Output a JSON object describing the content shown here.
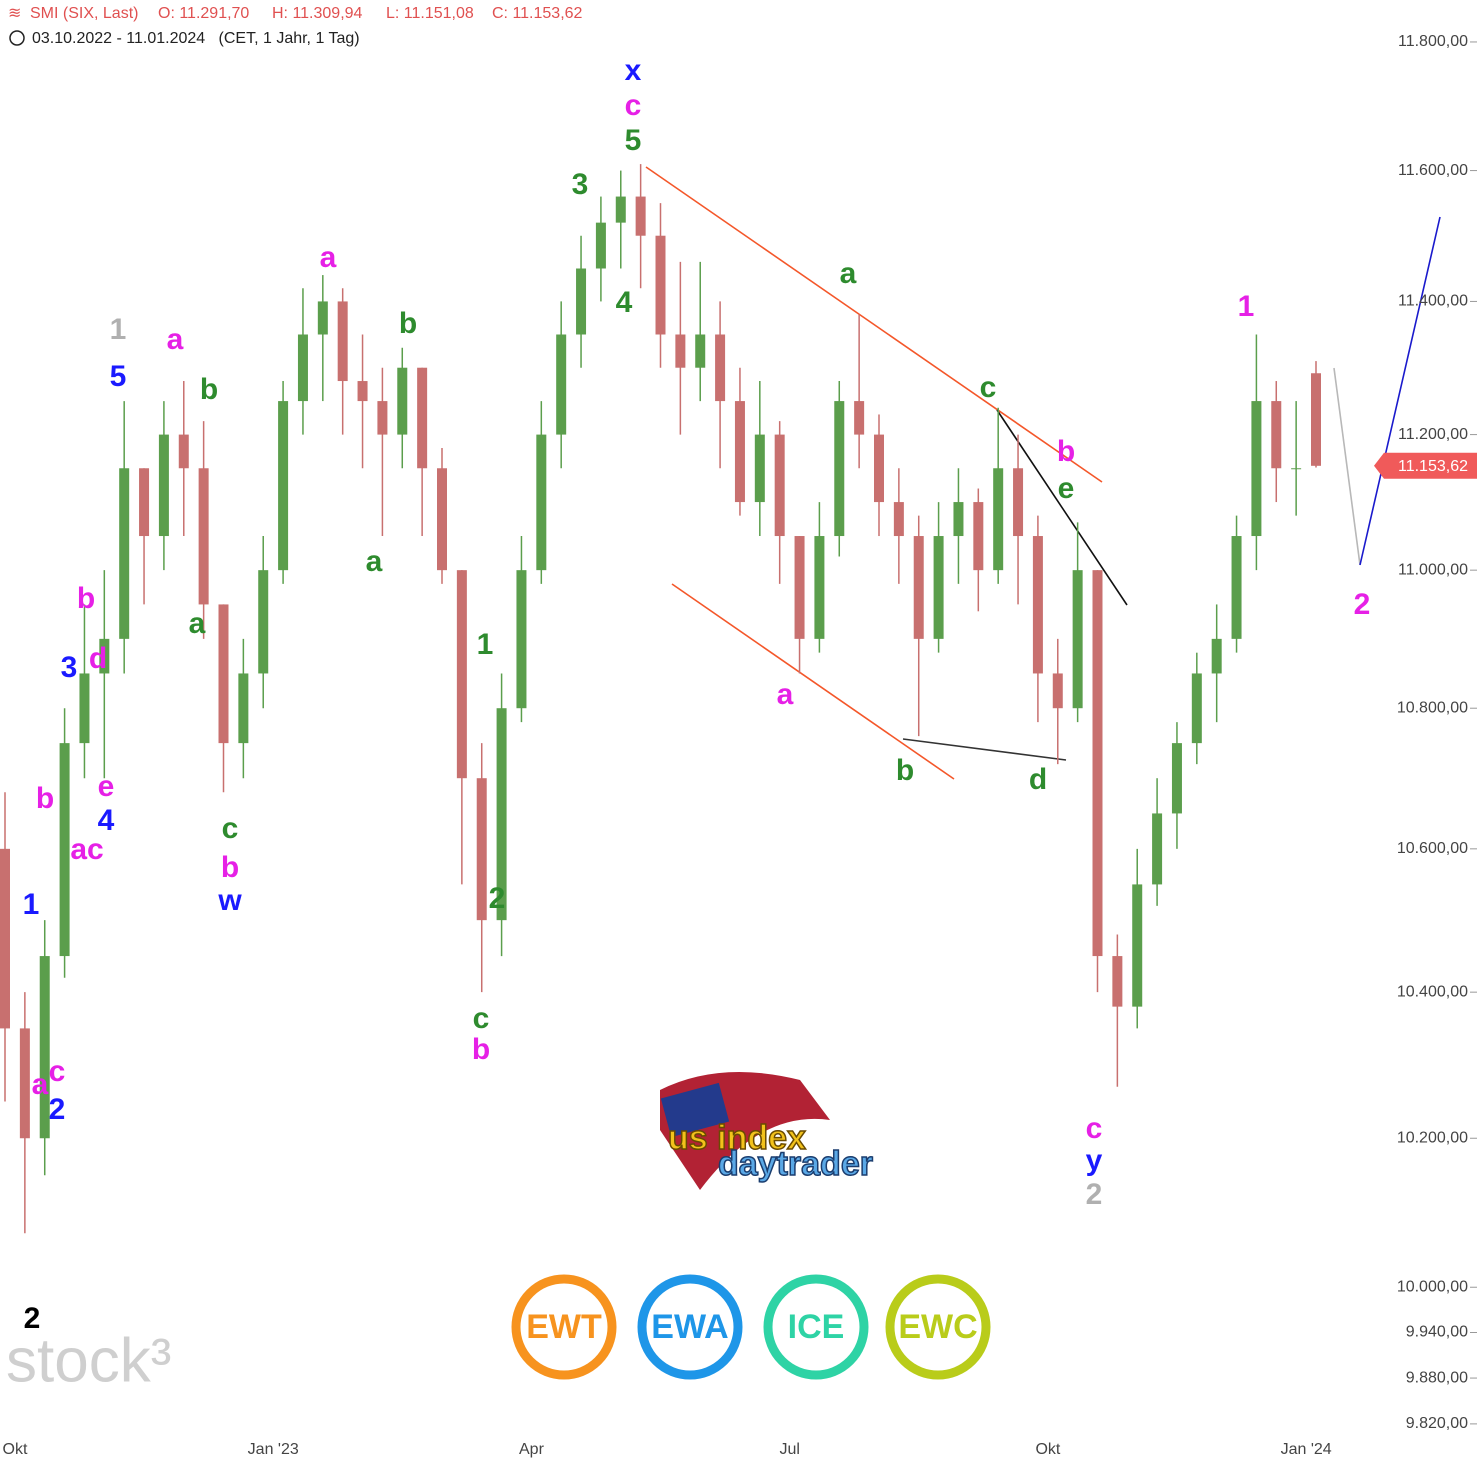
{
  "chart_data": {
    "type": "candlestick",
    "header": [
      "SMI (SIX, Last)",
      "O: 11.291,70",
      "H: 11.309,94",
      "L: 11.151,08",
      "C: 11.153,62"
    ],
    "subtitle": "03.10.2022 - 11.01.2024   (CET, 1 Jahr, 1 Tag)",
    "categories": [
      "Okt",
      null,
      null,
      null,
      null,
      null,
      null,
      null,
      null,
      null,
      null,
      null,
      null,
      "Jan '23",
      null,
      null,
      null,
      null,
      null,
      null,
      null,
      null,
      null,
      null,
      null,
      null,
      "Apr",
      null,
      null,
      null,
      null,
      null,
      null,
      null,
      null,
      null,
      null,
      null,
      null,
      "Jul",
      null,
      null,
      null,
      null,
      null,
      null,
      null,
      null,
      null,
      null,
      null,
      null,
      "Okt",
      null,
      null,
      null,
      null,
      null,
      null,
      null,
      null,
      null,
      null,
      null,
      null,
      "Jan '24",
      null
    ],
    "open": [
      10600,
      10350,
      10200,
      10450,
      10750,
      10850,
      10900,
      11150,
      11050,
      11200,
      11150,
      10950,
      10750,
      10850,
      11000,
      11250,
      11350,
      11400,
      11280,
      11250,
      11200,
      11300,
      11150,
      11000,
      10700,
      10500,
      10800,
      11000,
      11200,
      11350,
      11450,
      11520,
      11560,
      11500,
      11350,
      11300,
      11350,
      11250,
      11100,
      11200,
      11050,
      10900,
      11050,
      11250,
      11200,
      11100,
      11050,
      10900,
      11050,
      11100,
      11000,
      11150,
      11050,
      10850,
      10800,
      11000,
      10450,
      10380,
      10550,
      10650,
      10750,
      10850,
      10900,
      11050,
      11250,
      11150,
      11291.7
    ],
    "high": [
      10680,
      10400,
      10500,
      10800,
      10950,
      11000,
      11250,
      11150,
      11250,
      11280,
      11220,
      10950,
      10900,
      11050,
      11280,
      11420,
      11440,
      11420,
      11350,
      11300,
      11330,
      11300,
      11180,
      11000,
      10750,
      10850,
      11050,
      11250,
      11400,
      11500,
      11560,
      11600,
      11610,
      11550,
      11460,
      11460,
      11400,
      11300,
      11280,
      11220,
      11050,
      11100,
      11280,
      11380,
      11230,
      11150,
      11080,
      11100,
      11150,
      11120,
      11240,
      11200,
      11080,
      10900,
      11070,
      11000,
      10480,
      10600,
      10700,
      10780,
      10880,
      10950,
      11080,
      11350,
      11280,
      11250,
      11309.94
    ],
    "low": [
      10250,
      10072,
      10150,
      10420,
      10700,
      10700,
      10850,
      10950,
      11000,
      11050,
      10900,
      10680,
      10700,
      10800,
      10980,
      11200,
      11250,
      11200,
      11150,
      11050,
      11150,
      11050,
      10980,
      10550,
      10400,
      10450,
      10780,
      10980,
      11150,
      11300,
      11400,
      11450,
      11420,
      11300,
      11200,
      11250,
      11150,
      11080,
      11050,
      10980,
      10850,
      10880,
      11020,
      11150,
      11050,
      10980,
      10760,
      10880,
      10980,
      10940,
      10980,
      10950,
      10780,
      10720,
      10780,
      10400,
      10270,
      10350,
      10520,
      10600,
      10720,
      10780,
      10880,
      11000,
      11100,
      11080,
      11151.08
    ],
    "close": [
      10350,
      10200,
      10450,
      10750,
      10850,
      10900,
      11150,
      11050,
      11200,
      11150,
      10950,
      10750,
      10850,
      11000,
      11250,
      11350,
      11400,
      11280,
      11250,
      11200,
      11300,
      11150,
      11000,
      10700,
      10500,
      10800,
      11000,
      11200,
      11350,
      11450,
      11520,
      11560,
      11500,
      11350,
      11300,
      11350,
      11250,
      11100,
      11200,
      11050,
      10900,
      11050,
      11250,
      11200,
      11100,
      11050,
      10900,
      11050,
      11100,
      11000,
      11150,
      11050,
      10850,
      10800,
      11000,
      10450,
      10380,
      10550,
      10650,
      10750,
      10850,
      10900,
      11050,
      11250,
      11150,
      11150,
      11153.62
    ],
    "last_price_label": "11.153,62",
    "up_color": "#5b9e4c",
    "down_color": "#c8706f",
    "last_color": "#f05a5a",
    "log_scale": true,
    "ylim": [
      9799,
      11866
    ],
    "yticks": [
      {
        "value": 9820,
        "label": "9.820,00"
      },
      {
        "value": 9880,
        "label": "9.880,00"
      },
      {
        "value": 9940,
        "label": "9.940,00"
      },
      {
        "value": 10000,
        "label": "10.000,00"
      },
      {
        "value": 10200,
        "label": "10.200,00"
      },
      {
        "value": 10400,
        "label": "10.400,00"
      },
      {
        "value": 10600,
        "label": "10.600,00"
      },
      {
        "value": 10800,
        "label": "10.800,00"
      },
      {
        "value": 11000,
        "label": "11.000,00"
      },
      {
        "value": 11200,
        "label": "11.200,00"
      },
      {
        "value": 11400,
        "label": "11.400,00"
      },
      {
        "value": 11600,
        "label": "11.600,00"
      },
      {
        "value": 11800,
        "label": "11.800,00"
      }
    ],
    "annotations": [
      {
        "text": "x",
        "color": "#1a1aff"
      },
      {
        "text": "c",
        "color": "#e620e6"
      },
      {
        "text": "5",
        "color": "#2e8b2e"
      },
      {
        "text": "3",
        "color": "#2e8b2e"
      },
      {
        "text": "4",
        "color": "#2e8b2e"
      },
      {
        "text": "a",
        "color": "#e620e6"
      },
      {
        "text": "b",
        "color": "#2e8b2e"
      },
      {
        "text": "a",
        "color": "#2e8b2e"
      },
      {
        "text": "1",
        "color": "#b0b0b0"
      },
      {
        "text": "5",
        "color": "#1a1aff"
      },
      {
        "text": "a",
        "color": "#e620e6"
      },
      {
        "text": "b",
        "color": "#2e8b2e"
      },
      {
        "text": "a",
        "color": "#2e8b2e"
      },
      {
        "text": "b",
        "color": "#e620e6"
      },
      {
        "text": "3",
        "color": "#1a1aff"
      },
      {
        "text": "d",
        "color": "#e620e6"
      },
      {
        "text": "e",
        "color": "#e620e6"
      },
      {
        "text": "4",
        "color": "#1a1aff"
      },
      {
        "text": "b",
        "color": "#e620e6"
      },
      {
        "text": "ac",
        "color": "#e620e6"
      },
      {
        "text": "c",
        "color": "#2e8b2e"
      },
      {
        "text": "b",
        "color": "#e620e6"
      },
      {
        "text": "w",
        "color": "#1a1aff"
      },
      {
        "text": "1",
        "color": "#1a1aff"
      },
      {
        "text": "a",
        "color": "#e620e6"
      },
      {
        "text": "c",
        "color": "#e620e6"
      },
      {
        "text": "2",
        "color": "#1a1aff"
      },
      {
        "text": "2",
        "color": "#000000"
      },
      {
        "text": "1",
        "color": "#2e8b2e"
      },
      {
        "text": "2",
        "color": "#2e8b2e"
      },
      {
        "text": "c",
        "color": "#2e8b2e"
      },
      {
        "text": "b",
        "color": "#e620e6"
      },
      {
        "text": "a",
        "color": "#2e8b2e"
      },
      {
        "text": "a",
        "color": "#e620e6"
      },
      {
        "text": "b",
        "color": "#2e8b2e"
      },
      {
        "text": "c",
        "color": "#2e8b2e"
      },
      {
        "text": "b",
        "color": "#e620e6"
      },
      {
        "text": "e",
        "color": "#2e8b2e"
      },
      {
        "text": "d",
        "color": "#2e8b2e"
      },
      {
        "text": "c",
        "color": "#e620e6"
      },
      {
        "text": "y",
        "color": "#1a1aff"
      },
      {
        "text": "2",
        "color": "#b0b0b0"
      },
      {
        "text": "1",
        "color": "#e620e6"
      },
      {
        "text": "2",
        "color": "#e620e6"
      }
    ],
    "watermark": "stock³",
    "logo": [
      "us index",
      "daytrader"
    ],
    "badges": [
      "EWT",
      "EWA",
      "ICE",
      "EWC"
    ]
  }
}
